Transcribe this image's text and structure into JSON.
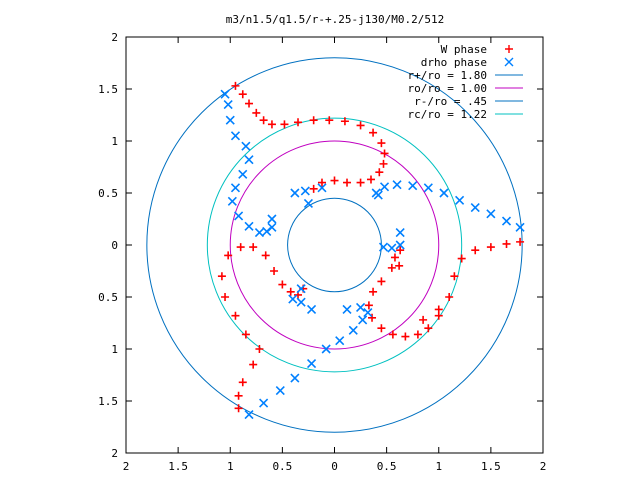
{
  "chart_data": {
    "type": "scatter",
    "title": "m3/n1.5/q1.5/r-+.25-j130/M0.2/512",
    "xlim": [
      -2,
      2
    ],
    "ylim": [
      -2,
      2
    ],
    "xticks": [
      -2,
      -1.5,
      -1,
      -0.5,
      0,
      0.5,
      1,
      1.5,
      2
    ],
    "yticks": [
      -2,
      -1.5,
      -1,
      -0.5,
      0,
      0.5,
      1,
      1.5,
      2
    ],
    "xtick_labels": [
      "2",
      "1.5",
      "1",
      "0.5",
      "0",
      "0.5",
      "1",
      "1.5",
      "2"
    ],
    "ytick_labels": [
      "2",
      "1.5",
      "1",
      "0.5",
      "0",
      "0.5",
      "1",
      "1.5",
      "2"
    ],
    "grid": false,
    "legend_position": "top-right",
    "series": [
      {
        "name": "W phase",
        "marker": "+",
        "color": "#ff0000",
        "points": [
          [
            -0.95,
            1.53
          ],
          [
            -0.88,
            1.45
          ],
          [
            -0.82,
            1.36
          ],
          [
            -0.75,
            1.27
          ],
          [
            -0.68,
            1.2
          ],
          [
            -0.6,
            1.16
          ],
          [
            -0.48,
            1.16
          ],
          [
            -0.35,
            1.18
          ],
          [
            -0.2,
            1.2
          ],
          [
            -0.05,
            1.2
          ],
          [
            0.1,
            1.19
          ],
          [
            0.25,
            1.15
          ],
          [
            0.37,
            1.08
          ],
          [
            0.45,
            0.98
          ],
          [
            0.48,
            0.88
          ],
          [
            0.47,
            0.78
          ],
          [
            0.43,
            0.7
          ],
          [
            0.35,
            0.63
          ],
          [
            0.25,
            0.6
          ],
          [
            0.12,
            0.6
          ],
          [
            0.0,
            0.62
          ],
          [
            -0.12,
            0.6
          ],
          [
            -0.2,
            0.54
          ],
          [
            1.78,
            0.03
          ],
          [
            1.65,
            0.01
          ],
          [
            1.5,
            -0.02
          ],
          [
            1.35,
            -0.05
          ],
          [
            1.22,
            -0.13
          ],
          [
            1.15,
            -0.3
          ],
          [
            1.1,
            -0.5
          ],
          [
            1.0,
            -0.68
          ],
          [
            0.9,
            -0.8
          ],
          [
            0.8,
            -0.86
          ],
          [
            0.68,
            -0.88
          ],
          [
            0.56,
            -0.86
          ],
          [
            0.45,
            -0.8
          ],
          [
            0.36,
            -0.7
          ],
          [
            0.33,
            -0.58
          ],
          [
            0.37,
            -0.45
          ],
          [
            0.45,
            -0.35
          ],
          [
            0.55,
            -0.22
          ],
          [
            0.58,
            -0.12
          ],
          [
            -0.92,
            -1.57
          ],
          [
            -0.92,
            -1.45
          ],
          [
            -0.88,
            -1.32
          ],
          [
            -0.78,
            -1.15
          ],
          [
            -0.72,
            -1.0
          ],
          [
            -0.85,
            -0.86
          ],
          [
            -0.95,
            -0.68
          ],
          [
            -1.05,
            -0.5
          ],
          [
            -1.08,
            -0.3
          ],
          [
            -1.02,
            -0.1
          ],
          [
            -0.9,
            -0.02
          ],
          [
            -0.78,
            -0.02
          ],
          [
            -0.66,
            -0.1
          ],
          [
            -0.58,
            -0.25
          ],
          [
            -0.5,
            -0.38
          ],
          [
            -0.42,
            -0.45
          ],
          [
            -0.35,
            -0.48
          ],
          [
            -0.3,
            -0.42
          ],
          [
            0.62,
            -0.2
          ],
          [
            0.63,
            -0.05
          ],
          [
            1.0,
            -0.62
          ],
          [
            0.85,
            -0.72
          ]
        ]
      },
      {
        "name": "drho phase",
        "marker": "x",
        "color": "#0080ff",
        "points": [
          [
            -1.05,
            1.45
          ],
          [
            -1.02,
            1.35
          ],
          [
            -1.0,
            1.2
          ],
          [
            -0.95,
            1.05
          ],
          [
            -0.85,
            0.95
          ],
          [
            -0.82,
            0.82
          ],
          [
            -0.88,
            0.68
          ],
          [
            -0.95,
            0.55
          ],
          [
            -0.98,
            0.42
          ],
          [
            -0.92,
            0.28
          ],
          [
            -0.82,
            0.18
          ],
          [
            -0.72,
            0.12
          ],
          [
            -0.65,
            0.13
          ],
          [
            -0.28,
            0.52
          ],
          [
            -0.25,
            0.4
          ],
          [
            1.78,
            0.17
          ],
          [
            1.65,
            0.23
          ],
          [
            1.5,
            0.3
          ],
          [
            1.35,
            0.36
          ],
          [
            1.2,
            0.43
          ],
          [
            1.05,
            0.5
          ],
          [
            0.9,
            0.55
          ],
          [
            0.75,
            0.57
          ],
          [
            0.6,
            0.58
          ],
          [
            0.48,
            0.56
          ],
          [
            0.42,
            0.48
          ],
          [
            0.47,
            -0.02
          ],
          [
            0.55,
            -0.03
          ],
          [
            0.63,
            0.12
          ],
          [
            0.63,
            0.0
          ],
          [
            -0.82,
            -1.63
          ],
          [
            -0.68,
            -1.52
          ],
          [
            -0.52,
            -1.4
          ],
          [
            -0.38,
            -1.28
          ],
          [
            -0.22,
            -1.14
          ],
          [
            -0.08,
            -1.0
          ],
          [
            0.05,
            -0.92
          ],
          [
            0.18,
            -0.82
          ],
          [
            0.27,
            -0.72
          ],
          [
            0.32,
            -0.65
          ],
          [
            0.25,
            -0.6
          ],
          [
            0.12,
            -0.62
          ],
          [
            -0.4,
            -0.52
          ],
          [
            -0.32,
            -0.42
          ],
          [
            -0.38,
            0.5
          ],
          [
            -0.12,
            0.55
          ],
          [
            0.4,
            0.5
          ],
          [
            -0.6,
            0.25
          ],
          [
            -0.6,
            0.17
          ],
          [
            -0.32,
            -0.55
          ],
          [
            -0.22,
            -0.62
          ]
        ]
      }
    ],
    "circles": [
      {
        "name": "r+/ro = 1.80",
        "radius": 1.8,
        "color": "#0070c0"
      },
      {
        "name": "ro/ro = 1.00",
        "radius": 1.0,
        "color": "#c000c0"
      },
      {
        "name": "r-/ro = .45",
        "radius": 0.45,
        "color": "#0070c0"
      },
      {
        "name": "rc/ro = 1.22",
        "radius": 1.22,
        "color": "#00c0c0"
      }
    ]
  }
}
